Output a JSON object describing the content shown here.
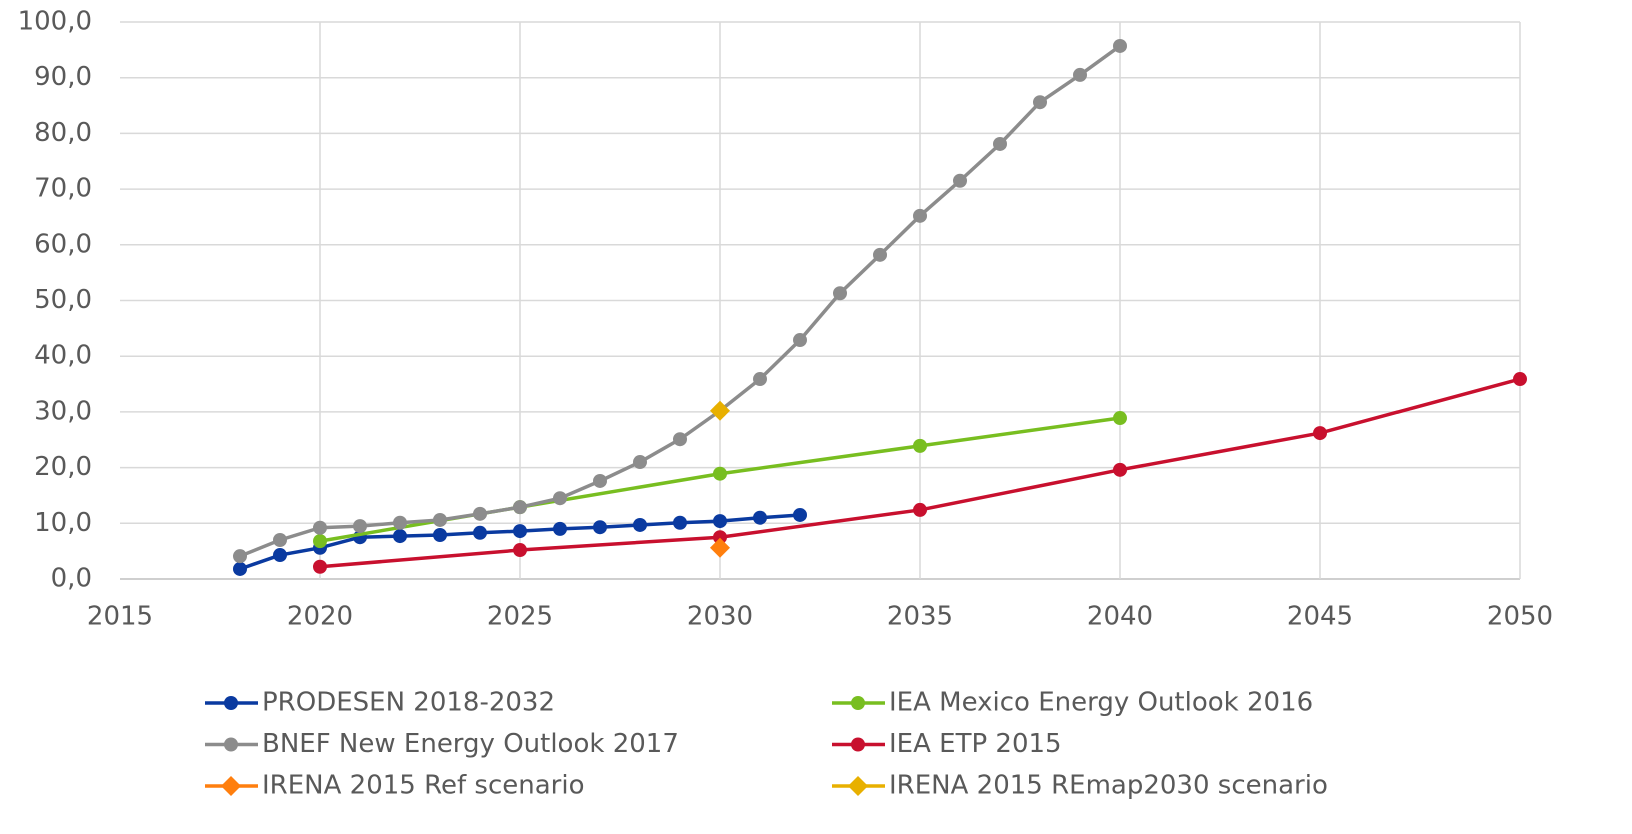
{
  "chart_data": {
    "type": "line",
    "xlim": [
      2015,
      2050
    ],
    "xticks": [
      2015,
      2020,
      2025,
      2030,
      2035,
      2040,
      2045,
      2050
    ],
    "ylim": [
      0,
      100
    ],
    "yticks": [
      {
        "value": 0,
        "label": "0,0"
      },
      {
        "value": 10,
        "label": "10,0"
      },
      {
        "value": 20,
        "label": "20,0"
      },
      {
        "value": 30,
        "label": "30,0"
      },
      {
        "value": 40,
        "label": "40,0"
      },
      {
        "value": 50,
        "label": "50,0"
      },
      {
        "value": 60,
        "label": "60,0"
      },
      {
        "value": 70,
        "label": "70,0"
      },
      {
        "value": 80,
        "label": "80,0"
      },
      {
        "value": 90,
        "label": "90,0"
      },
      {
        "value": 100,
        "label": "100,0"
      }
    ],
    "grid": true,
    "legend": "bottom",
    "series": [
      {
        "name": "PRODESEN 2018-2032",
        "color": "#0a3aa0",
        "marker": "circle",
        "x": [
          2018,
          2019,
          2020,
          2021,
          2022,
          2023,
          2024,
          2025,
          2026,
          2027,
          2028,
          2029,
          2030,
          2031,
          2032
        ],
        "values": [
          1.8,
          4.3,
          5.6,
          7.5,
          7.7,
          7.9,
          8.3,
          8.6,
          9.0,
          9.3,
          9.7,
          10.1,
          10.4,
          11.0,
          11.5
        ]
      },
      {
        "name": "IEA Mexico Energy Outlook 2016",
        "color": "#78be20",
        "marker": "circle",
        "x": [
          2020,
          2025,
          2030,
          2035,
          2040
        ],
        "values": [
          6.8,
          12.9,
          18.9,
          23.9,
          28.9
        ]
      },
      {
        "name": "BNEF New Energy Outlook 2017",
        "color": "#8c8c8c",
        "marker": "circle",
        "x": [
          2018,
          2019,
          2020,
          2021,
          2022,
          2023,
          2024,
          2025,
          2026,
          2027,
          2028,
          2029,
          2030,
          2031,
          2032,
          2033,
          2034,
          2035,
          2036,
          2037,
          2038,
          2039,
          2040
        ],
        "values": [
          4.1,
          7.0,
          9.2,
          9.5,
          10.1,
          10.6,
          11.7,
          12.9,
          14.5,
          17.6,
          21.0,
          25.1,
          30.2,
          35.9,
          42.9,
          51.3,
          58.2,
          65.2,
          71.5,
          78.1,
          85.6,
          90.5,
          95.7
        ]
      },
      {
        "name": "IEA ETP 2015",
        "color": "#c8102e",
        "marker": "circle",
        "x": [
          2020,
          2025,
          2030,
          2035,
          2040,
          2045,
          2050
        ],
        "values": [
          2.2,
          5.2,
          7.5,
          12.4,
          19.6,
          26.2,
          35.9
        ]
      },
      {
        "name": "IRENA 2015 Ref scenario",
        "color": "#ff7f0e",
        "marker": "diamond",
        "x": [
          2030
        ],
        "values": [
          5.6
        ]
      },
      {
        "name": "IRENA 2015 REmap2030 scenario",
        "color": "#e8b000",
        "marker": "diamond",
        "x": [
          2030
        ],
        "values": [
          30.2
        ]
      }
    ]
  }
}
